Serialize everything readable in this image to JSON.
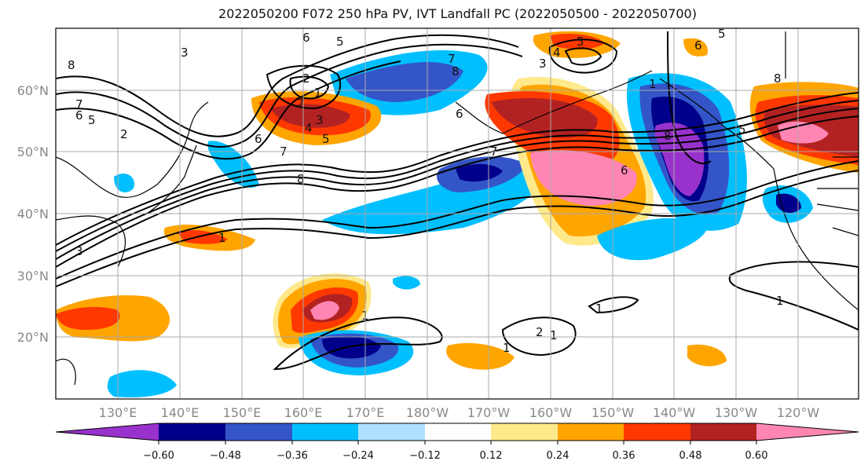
{
  "title": "2022050200 F072 250 hPa PV, IVT Landfall PC (2022050500 - 2022050700)",
  "map": {
    "lon_ticks": [
      "130°E",
      "140°E",
      "150°E",
      "160°E",
      "170°E",
      "180°W",
      "170°W",
      "160°W",
      "150°W",
      "140°W",
      "130°W",
      "120°W"
    ],
    "lat_ticks": [
      "60°N",
      "50°N",
      "40°N",
      "30°N",
      "20°N"
    ],
    "contour_labels": [
      "6",
      "5",
      "3",
      "8",
      "7",
      "6",
      "5",
      "2",
      "2",
      "1",
      "7",
      "3",
      "4",
      "5",
      "6",
      "7",
      "8",
      "7",
      "8",
      "5",
      "3",
      "4",
      "5",
      "6",
      "1",
      "8",
      "7",
      "6",
      "5",
      "3",
      "1",
      "1",
      "1",
      "1",
      "1",
      "2",
      "1",
      "8",
      "6"
    ]
  },
  "colorbar": {
    "ticks": [
      "−0.60",
      "−0.48",
      "−0.36",
      "−0.24",
      "−0.12",
      "0.12",
      "0.24",
      "0.36",
      "0.48",
      "0.60"
    ],
    "colors": [
      "#9932cc",
      "#00008b",
      "#3455c8",
      "#00bfff",
      "#b0e0ff",
      "#ffffff",
      "#ffe98a",
      "#ffa500",
      "#ff3800",
      "#b22222",
      "#ff86b3"
    ]
  }
}
